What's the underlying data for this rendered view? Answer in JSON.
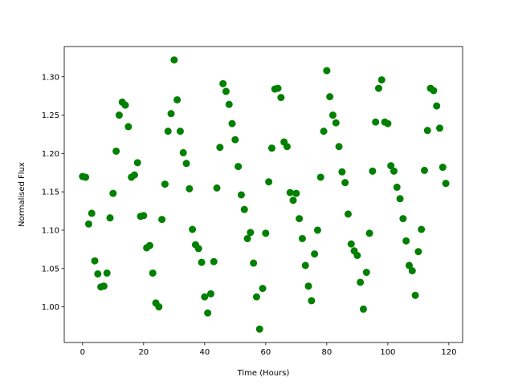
{
  "chart_data": {
    "type": "scatter",
    "title": "",
    "xlabel": "Time (Hours)",
    "ylabel": "Normalised Flux",
    "xlim": [
      -6,
      124.5
    ],
    "ylim": [
      0.9535,
      1.3395
    ],
    "xticks": [
      0,
      20,
      40,
      60,
      80,
      100,
      120
    ],
    "xtick_labels": [
      "0",
      "20",
      "40",
      "60",
      "80",
      "100",
      "120"
    ],
    "yticks": [
      1.0,
      1.05,
      1.1,
      1.15,
      1.2,
      1.25,
      1.3
    ],
    "ytick_labels": [
      "1.00",
      "1.05",
      "1.10",
      "1.15",
      "1.20",
      "1.25",
      "1.30"
    ],
    "grid": false,
    "marker_color": "#008000",
    "series": [
      {
        "x": [
          0,
          1,
          2,
          3,
          4,
          5,
          6,
          7,
          8,
          9,
          10,
          11,
          12,
          13,
          14,
          15,
          16,
          17,
          18,
          19,
          20,
          21,
          22,
          23,
          24,
          25,
          26,
          27,
          28,
          29,
          30,
          31,
          32,
          33,
          34,
          35,
          36,
          37,
          38,
          39,
          40,
          41,
          42,
          43,
          44,
          45,
          46,
          47,
          48,
          49,
          50,
          51,
          52,
          53,
          54,
          55,
          56,
          57,
          58,
          59,
          60,
          61,
          62,
          63,
          64,
          65,
          66,
          67,
          68,
          69,
          70,
          71,
          72,
          73,
          74,
          75,
          76,
          77,
          78,
          79,
          80,
          81,
          82,
          83,
          84,
          85,
          86,
          87,
          88,
          89,
          90,
          91,
          92,
          93,
          94,
          95,
          96,
          97,
          98,
          99,
          100,
          101,
          102,
          103,
          104,
          105,
          106,
          107,
          108,
          109,
          110,
          111,
          112,
          113,
          114,
          115,
          116,
          117,
          118,
          119
        ],
        "y": [
          1.17,
          1.169,
          1.108,
          1.122,
          1.06,
          1.043,
          1.026,
          1.027,
          1.044,
          1.116,
          1.148,
          1.203,
          1.25,
          1.267,
          1.263,
          1.235,
          1.169,
          1.172,
          1.188,
          1.118,
          1.119,
          1.077,
          1.08,
          1.044,
          1.005,
          1.0,
          1.114,
          1.16,
          1.229,
          1.252,
          1.322,
          1.27,
          1.229,
          1.201,
          1.187,
          1.154,
          1.101,
          1.081,
          1.076,
          1.058,
          1.013,
          0.992,
          1.017,
          1.059,
          1.155,
          1.208,
          1.291,
          1.281,
          1.264,
          1.239,
          1.218,
          1.183,
          1.146,
          1.127,
          1.089,
          1.097,
          1.057,
          1.013,
          0.971,
          1.024,
          1.096,
          1.163,
          1.207,
          1.284,
          1.285,
          1.273,
          1.215,
          1.209,
          1.149,
          1.139,
          1.148,
          1.115,
          1.089,
          1.054,
          1.027,
          1.008,
          1.069,
          1.1,
          1.169,
          1.229,
          1.308,
          1.274,
          1.25,
          1.24,
          1.209,
          1.176,
          1.162,
          1.121,
          1.082,
          1.073,
          1.067,
          1.032,
          0.997,
          1.045,
          1.096,
          1.177,
          1.241,
          1.285,
          1.296,
          1.241,
          1.239,
          1.184,
          1.177,
          1.156,
          1.141,
          1.115,
          1.086,
          1.054,
          1.047,
          1.015,
          1.072,
          1.101,
          1.178,
          1.23,
          1.285,
          1.282,
          1.262,
          1.233,
          1.182,
          1.161
        ]
      }
    ]
  }
}
